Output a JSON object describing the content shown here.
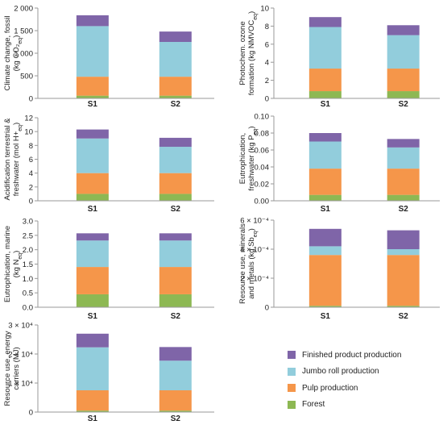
{
  "colors": {
    "forest": "#8db853",
    "pulp": "#f5964a",
    "jumbo": "#92cddc",
    "finished": "#7f65a8"
  },
  "legend": [
    {
      "label": "Finished product production",
      "color": "#7f65a8"
    },
    {
      "label": "Jumbo roll production",
      "color": "#92cddc"
    },
    {
      "label": "Pulp production",
      "color": "#f5964a"
    },
    {
      "label": "Forest",
      "color": "#8db853"
    }
  ],
  "chart_data": [
    {
      "type": "bar",
      "stacked": true,
      "ylabel": [
        "Climate change, fossil",
        "(kg CO₂eq)"
      ],
      "ylim": [
        0,
        2000
      ],
      "yticks": [
        0,
        500,
        1000,
        1500,
        2000
      ],
      "ytick_labels": [
        "0",
        "500",
        "1 000",
        "1 500",
        "2 000"
      ],
      "categories": [
        "S1",
        "S2"
      ],
      "series": [
        {
          "name": "Forest",
          "values": [
            60,
            60
          ]
        },
        {
          "name": "Pulp production",
          "values": [
            420,
            420
          ]
        },
        {
          "name": "Jumbo roll production",
          "values": [
            1120,
            770
          ]
        },
        {
          "name": "Finished product production",
          "values": [
            240,
            230
          ]
        }
      ]
    },
    {
      "type": "bar",
      "stacked": true,
      "ylabel": [
        "Photochem. ozone",
        "formation (kg NMVOCeq)"
      ],
      "ylim": [
        0,
        10
      ],
      "yticks": [
        0,
        2,
        4,
        6,
        8,
        10
      ],
      "ytick_labels": [
        "0",
        "2",
        "4",
        "6",
        "8",
        "10"
      ],
      "categories": [
        "S1",
        "S2"
      ],
      "series": [
        {
          "name": "Forest",
          "values": [
            0.8,
            0.8
          ]
        },
        {
          "name": "Pulp production",
          "values": [
            2.5,
            2.5
          ]
        },
        {
          "name": "Jumbo roll production",
          "values": [
            4.6,
            3.7
          ]
        },
        {
          "name": "Finished product production",
          "values": [
            1.1,
            1.1
          ]
        }
      ]
    },
    {
      "type": "bar",
      "stacked": true,
      "ylabel": [
        "Acidification terrestrial &",
        "freshwater (mol H+eq)"
      ],
      "ylim": [
        0,
        12
      ],
      "yticks": [
        0,
        2,
        4,
        6,
        8,
        10,
        12
      ],
      "ytick_labels": [
        "0",
        "2",
        "4",
        "6",
        "8",
        "10",
        "12"
      ],
      "categories": [
        "S1",
        "S2"
      ],
      "series": [
        {
          "name": "Forest",
          "values": [
            1.0,
            1.0
          ]
        },
        {
          "name": "Pulp production",
          "values": [
            3.0,
            3.0
          ]
        },
        {
          "name": "Jumbo roll production",
          "values": [
            5.0,
            3.8
          ]
        },
        {
          "name": "Finished product production",
          "values": [
            1.3,
            1.3
          ]
        }
      ]
    },
    {
      "type": "bar",
      "stacked": true,
      "ylabel": [
        "Eutrophication,",
        "freshwater (kg Peq)"
      ],
      "ylim": [
        0,
        0.1
      ],
      "yticks": [
        0,
        0.02,
        0.04,
        0.06,
        0.08,
        0.1
      ],
      "ytick_labels": [
        "0.00",
        "0.02",
        "0.04",
        "0.06",
        "0.08",
        "0.10"
      ],
      "categories": [
        "S1",
        "S2"
      ],
      "series": [
        {
          "name": "Forest",
          "values": [
            0.007,
            0.007
          ]
        },
        {
          "name": "Pulp production",
          "values": [
            0.031,
            0.031
          ]
        },
        {
          "name": "Jumbo roll production",
          "values": [
            0.032,
            0.025
          ]
        },
        {
          "name": "Finished product production",
          "values": [
            0.01,
            0.01
          ]
        }
      ]
    },
    {
      "type": "bar",
      "stacked": true,
      "ylabel": [
        "Eutrophication, marine",
        "(kg Neq)"
      ],
      "ylim": [
        0,
        3.0
      ],
      "yticks": [
        0,
        0.5,
        1.0,
        1.5,
        2.0,
        2.5,
        3.0
      ],
      "ytick_labels": [
        "0.0",
        "0.5",
        "1.0",
        "1.5",
        "2.0",
        "2.5",
        "3.0"
      ],
      "categories": [
        "S1",
        "S2"
      ],
      "series": [
        {
          "name": "Forest",
          "values": [
            0.45,
            0.45
          ]
        },
        {
          "name": "Pulp production",
          "values": [
            0.95,
            0.95
          ]
        },
        {
          "name": "Jumbo roll production",
          "values": [
            0.92,
            0.92
          ]
        },
        {
          "name": "Finished product production",
          "values": [
            0.25,
            0.25
          ]
        }
      ]
    },
    {
      "type": "bar",
      "stacked": true,
      "ylabel": [
        "Resource use, minerals",
        "and metals (kg Sbeq)"
      ],
      "ylim": [
        0,
        0.0006
      ],
      "yticks": [
        0,
        0.0002,
        0.0004,
        0.0006
      ],
      "ytick_labels": [
        "0",
        "2 × 10⁻⁴",
        "4 × 10⁻⁴",
        "6 × 10⁻⁴"
      ],
      "categories": [
        "S1",
        "S2"
      ],
      "series": [
        {
          "name": "Forest",
          "values": [
            1e-05,
            1e-05
          ]
        },
        {
          "name": "Pulp production",
          "values": [
            0.00035,
            0.00035
          ]
        },
        {
          "name": "Jumbo roll production",
          "values": [
            6e-05,
            4e-05
          ]
        },
        {
          "name": "Finished product production",
          "values": [
            0.00012,
            0.00013
          ]
        }
      ]
    },
    {
      "type": "bar",
      "stacked": true,
      "ylabel": [
        "Resource use, energy",
        "carriers (MJ)"
      ],
      "ylim": [
        0,
        30000
      ],
      "yticks": [
        0,
        10000,
        20000,
        30000
      ],
      "ytick_labels": [
        "0",
        "1 × 10⁴",
        "2 × 10⁴",
        "3 × 10⁴"
      ],
      "categories": [
        "S1",
        "S2"
      ],
      "series": [
        {
          "name": "Forest",
          "values": [
            500,
            500
          ]
        },
        {
          "name": "Pulp production",
          "values": [
            7000,
            7000
          ]
        },
        {
          "name": "Jumbo roll production",
          "values": [
            14800,
            10200
          ]
        },
        {
          "name": "Finished product production",
          "values": [
            4700,
            4700
          ]
        }
      ]
    }
  ]
}
